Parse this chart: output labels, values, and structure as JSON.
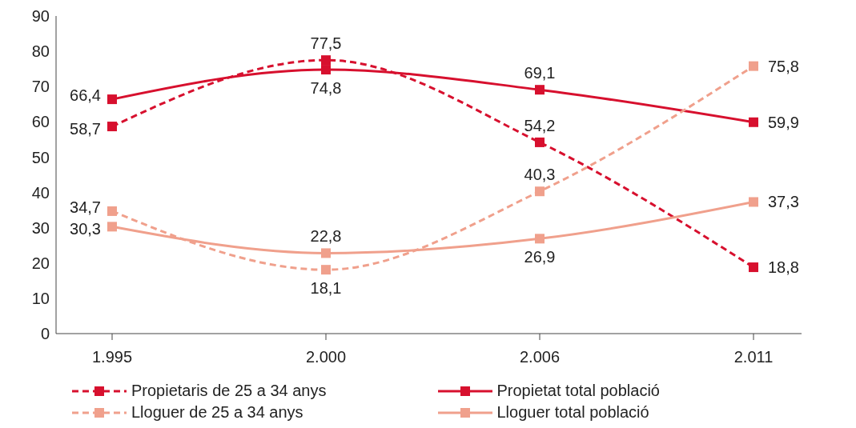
{
  "chart_data": {
    "type": "line",
    "categories": [
      "1.995",
      "2.000",
      "2.006",
      "2.011"
    ],
    "series": [
      {
        "name": "Propietaris de 25 a 34 anys",
        "color": "#d7102e",
        "line_style": "dashed",
        "values": [
          58.7,
          77.5,
          54.2,
          18.8
        ],
        "value_labels": [
          "58,7",
          "77,5",
          "54,2",
          "18,8"
        ]
      },
      {
        "name": "Propietat total població",
        "color": "#d7102e",
        "line_style": "solid",
        "values": [
          66.4,
          74.8,
          69.1,
          59.9
        ],
        "value_labels": [
          "66,4",
          "74,8",
          "69,1",
          "59,9"
        ]
      },
      {
        "name": "Lloguer de 25 a 34 anys",
        "color": "#f0a08c",
        "line_style": "dashed",
        "values": [
          34.7,
          18.1,
          40.3,
          75.8
        ],
        "value_labels": [
          "34,7",
          "18,1",
          "40,3",
          "75,8"
        ]
      },
      {
        "name": "Lloguer total població",
        "color": "#f0a08c",
        "line_style": "solid",
        "values": [
          30.3,
          22.8,
          26.9,
          37.3
        ],
        "value_labels": [
          "30,3",
          "22,8",
          "26,9",
          "37,3"
        ]
      }
    ],
    "ylim": [
      0,
      90
    ],
    "yticks": [
      0,
      10,
      20,
      30,
      40,
      50,
      60,
      70,
      80,
      90
    ],
    "grid": false,
    "legend": "bottom",
    "marker": "square"
  }
}
